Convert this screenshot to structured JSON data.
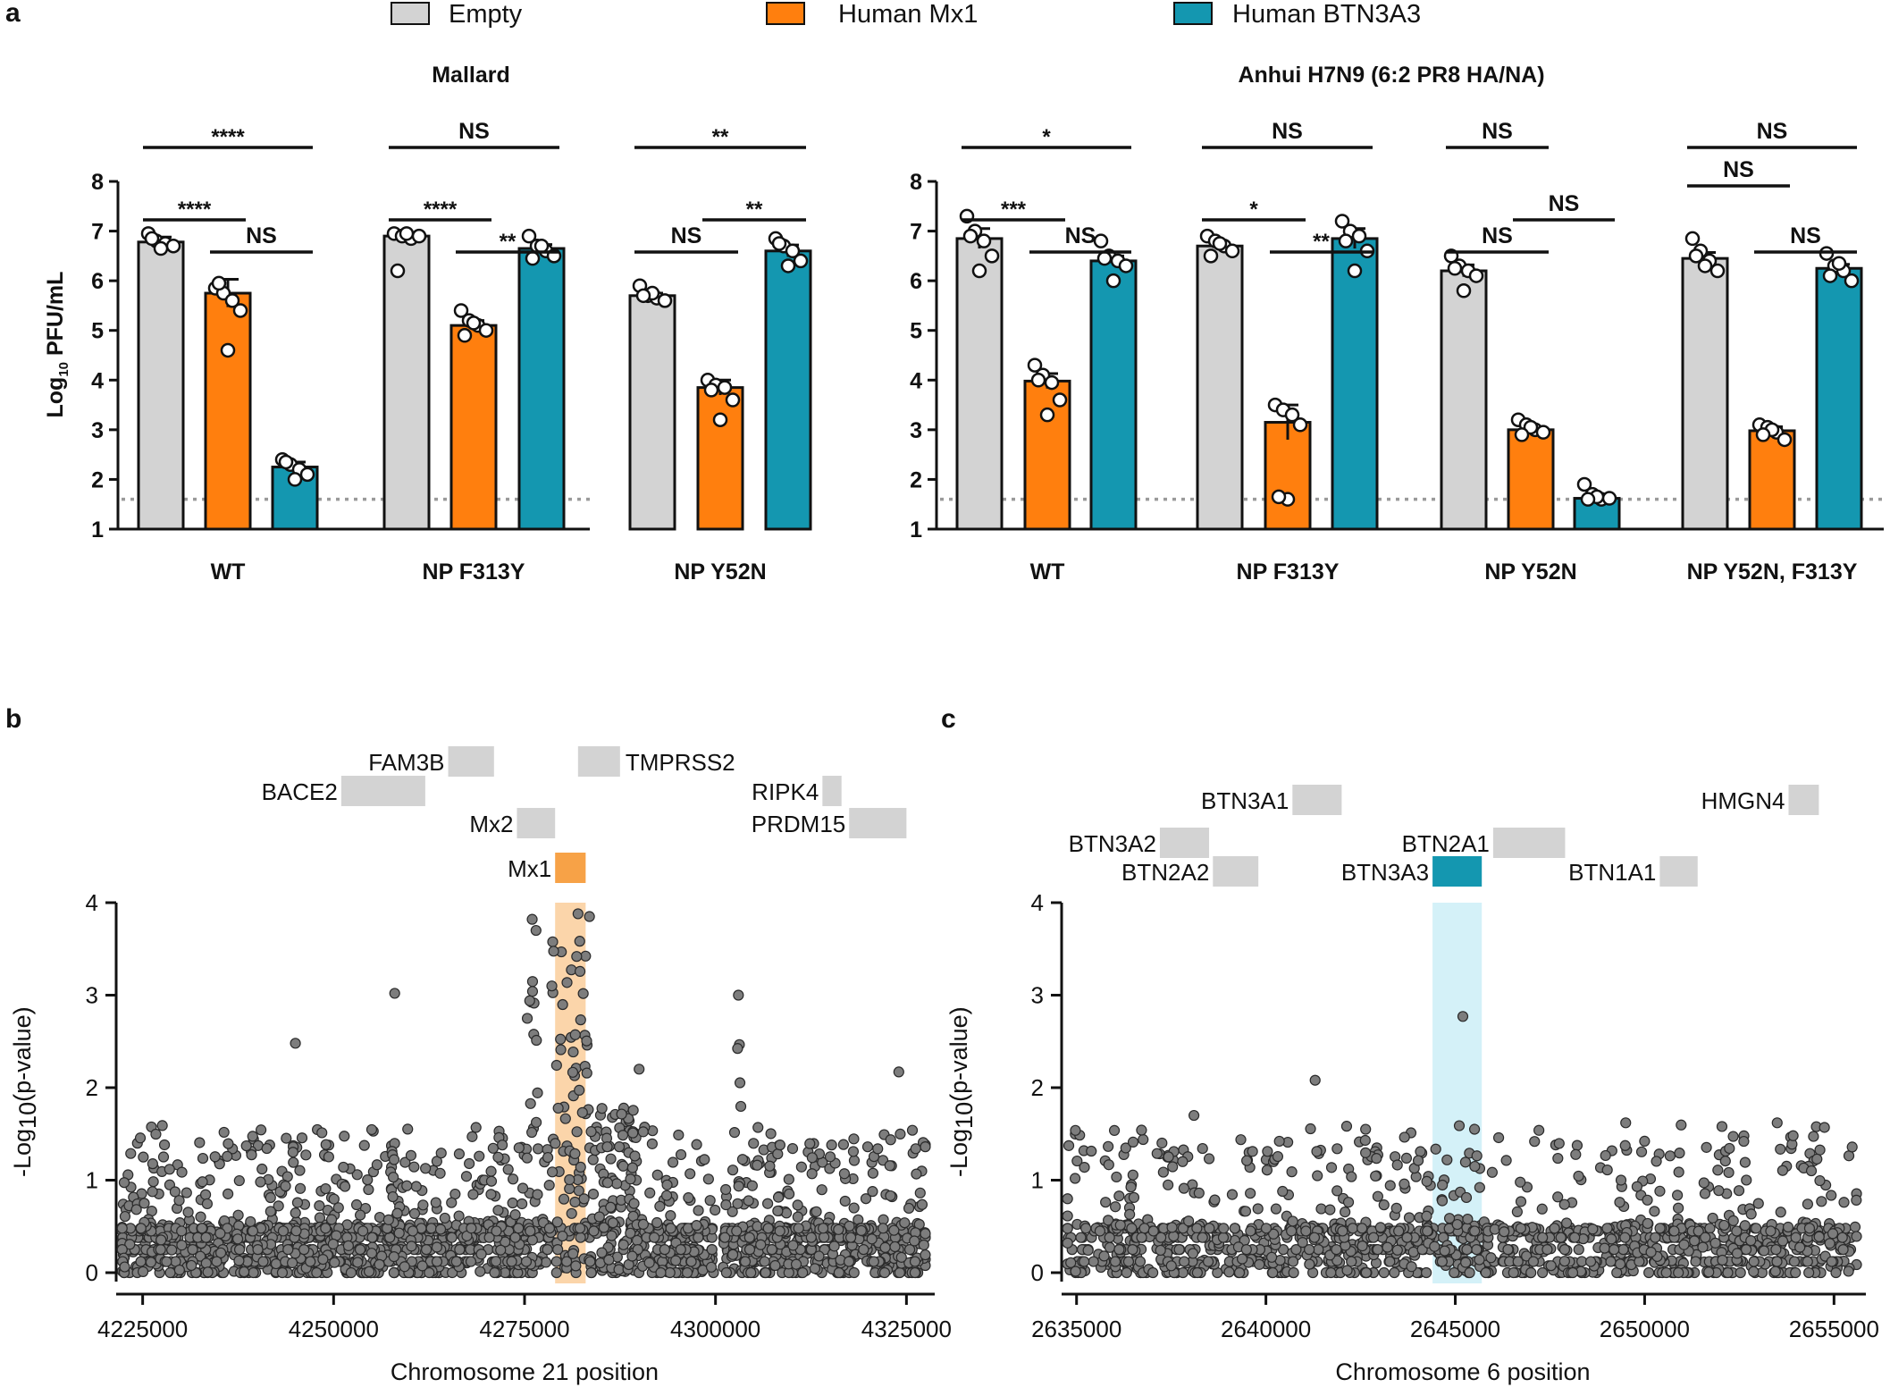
{
  "panel_labels": [
    "a",
    "b",
    "c"
  ],
  "legend": [
    {
      "label": "Empty",
      "color": "#d3d3d3"
    },
    {
      "label": "Human Mx1",
      "color": "#ff7f0e"
    },
    {
      "label": "Human BTN3A3",
      "color": "#1497b0"
    }
  ],
  "chart_data": [
    {
      "type": "bar",
      "title": "Mallard",
      "ylabel_main": "Log",
      "ylabel_sub": "10",
      "ylabel_rest": " PFU/mL",
      "ylim": [
        1,
        8
      ],
      "yticks": [
        "1",
        "2",
        "3",
        "4",
        "5",
        "6",
        "7",
        "8"
      ],
      "detection_limit": 1.6,
      "series_names": [
        "Empty",
        "Human Mx1",
        "Human BTN3A3"
      ],
      "groups": [
        {
          "label": "WT",
          "means": [
            6.78,
            5.75,
            2.25
          ],
          "sem": [
            0.1,
            0.28,
            0.1
          ],
          "points": [
            [
              6.95,
              6.8,
              6.75,
              6.7,
              6.65,
              6.85
            ],
            [
              5.85,
              5.75,
              5.6,
              5.4,
              4.6,
              5.95
            ],
            [
              2.4,
              2.3,
              2.2,
              2.1,
              2.0,
              2.35
            ]
          ],
          "comparisons": [
            {
              "from": 0,
              "to": 2,
              "label": "****",
              "level": 3.7
            },
            {
              "from": 0,
              "to": 1,
              "label": "****",
              "level": 2.1
            },
            {
              "from": 1,
              "to": 2,
              "label": "NS",
              "level": 1.15
            }
          ]
        },
        {
          "label": "NP F313Y",
          "means": [
            6.9,
            5.1,
            6.65
          ],
          "sem": [
            0.05,
            0.1,
            0.08
          ],
          "points": [
            [
              6.95,
              6.9,
              6.85,
              6.9,
              6.95,
              6.2
            ],
            [
              5.4,
              5.2,
              5.1,
              5.0,
              5.15,
              4.9
            ],
            [
              6.9,
              6.7,
              6.6,
              6.5,
              6.7,
              6.45
            ]
          ],
          "comparisons": [
            {
              "from": 0,
              "to": 2,
              "label": "NS",
              "level": 3.7
            },
            {
              "from": 0,
              "to": 1,
              "label": "****",
              "level": 2.1
            },
            {
              "from": 1,
              "to": 2,
              "label": "**",
              "level": 1.15
            }
          ]
        },
        {
          "label": "NP Y52N",
          "means": [
            5.7,
            3.85,
            6.6
          ],
          "sem": [
            0.05,
            0.15,
            0.12
          ],
          "points": [
            [
              5.9,
              5.7,
              5.65,
              5.6,
              5.75,
              5.7
            ],
            [
              4.0,
              3.9,
              3.85,
              3.6,
              3.2,
              3.8
            ],
            [
              6.85,
              6.7,
              6.6,
              6.4,
              6.3,
              6.75
            ]
          ],
          "comparisons": [
            {
              "from": 0,
              "to": 2,
              "label": "**",
              "level": 3.7
            },
            {
              "from": 0,
              "to": 1,
              "label": "NS",
              "level": 1.15
            },
            {
              "from": 1,
              "to": 2,
              "label": "**",
              "level": 2.1
            }
          ]
        }
      ]
    },
    {
      "type": "bar",
      "title": "Anhui H7N9 (6:2 PR8 HA/NA)",
      "ylim": [
        1,
        8
      ],
      "yticks": [
        "1",
        "2",
        "3",
        "4",
        "5",
        "6",
        "7",
        "8"
      ],
      "detection_limit": 1.6,
      "series_names": [
        "Empty",
        "Human Mx1",
        "Human BTN3A3"
      ],
      "groups": [
        {
          "label": "WT",
          "means": [
            6.85,
            3.98,
            6.4
          ],
          "sem": [
            0.2,
            0.15,
            0.1
          ],
          "points": [
            [
              7.3,
              7.0,
              6.8,
              6.5,
              6.2,
              6.9
            ],
            [
              4.3,
              4.1,
              3.95,
              3.6,
              3.3,
              4.0
            ],
            [
              6.8,
              6.5,
              6.4,
              6.3,
              6.0,
              6.45
            ]
          ],
          "comparisons": [
            {
              "from": 0,
              "to": 2,
              "label": "*",
              "level": 3.7
            },
            {
              "from": 0,
              "to": 1,
              "label": "***",
              "level": 2.1
            },
            {
              "from": 1,
              "to": 2,
              "label": "NS",
              "level": 1.15
            }
          ]
        },
        {
          "label": "NP F313Y",
          "means": [
            6.7,
            3.15,
            6.85
          ],
          "sem": [
            0.06,
            0.35,
            0.2
          ],
          "points": [
            [
              6.9,
              6.8,
              6.7,
              6.6,
              6.75,
              6.5
            ],
            [
              3.5,
              3.4,
              3.3,
              3.1,
              1.6,
              1.65
            ],
            [
              7.2,
              7.0,
              6.9,
              6.6,
              6.2,
              6.8
            ]
          ],
          "comparisons": [
            {
              "from": 0,
              "to": 2,
              "label": "NS",
              "level": 3.7
            },
            {
              "from": 0,
              "to": 1,
              "label": "*",
              "level": 2.1
            },
            {
              "from": 1,
              "to": 2,
              "label": "**",
              "level": 1.15
            }
          ]
        },
        {
          "label": "NP Y52N",
          "means": [
            6.2,
            3.0,
            1.62
          ],
          "sem": [
            0.12,
            0.06,
            0.03
          ],
          "points": [
            [
              6.5,
              6.3,
              6.2,
              6.1,
              5.8,
              6.25
            ],
            [
              3.2,
              3.1,
              3.0,
              2.95,
              3.05,
              2.9
            ],
            [
              1.9,
              1.7,
              1.6,
              1.62,
              1.65,
              1.6
            ]
          ],
          "comparisons": [
            {
              "from": 0,
              "to": 1,
              "label": "NS",
              "level": 3.7
            },
            {
              "from": 0,
              "to": 1,
              "label": "NS",
              "level": 1.15
            },
            {
              "from": 1,
              "to": 2,
              "label": "NS",
              "level": 2.1
            }
          ]
        },
        {
          "label": "NP Y52N, F313Y",
          "means": [
            6.45,
            2.98,
            6.25
          ],
          "sem": [
            0.12,
            0.08,
            0.08
          ],
          "points": [
            [
              6.85,
              6.6,
              6.4,
              6.2,
              6.3,
              6.5
            ],
            [
              3.1,
              3.05,
              2.95,
              2.8,
              3.0,
              2.9
            ],
            [
              6.55,
              6.3,
              6.2,
              6.0,
              6.35,
              6.1
            ]
          ],
          "comparisons": [
            {
              "from": 0,
              "to": 2,
              "label": "NS",
              "level": 3.7
            },
            {
              "from": 0,
              "to": 1,
              "label": "NS",
              "level": 2.8
            },
            {
              "from": 1,
              "to": 2,
              "label": "NS",
              "level": 1.15
            }
          ]
        }
      ]
    },
    {
      "type": "scatter",
      "panel": "b",
      "xlabel": "Chromosome 21 position",
      "ylabel_main": "-Log",
      "ylabel_sub": "10",
      "ylabel_rest": "(p-value)",
      "xlim": [
        4222000,
        4328000
      ],
      "ylim": [
        0,
        4
      ],
      "xticks": [
        "4225000",
        "4250000",
        "4275000",
        "4300000",
        "4325000"
      ],
      "yticks": [
        "0",
        "1",
        "2",
        "3",
        "4"
      ],
      "highlight": {
        "gene": "Mx1",
        "start": 4279000,
        "end": 4283000,
        "color": "#fbd5aa",
        "bar_color": "#f7a247"
      },
      "genes": [
        {
          "name": "FAM3B",
          "start": 4265000,
          "end": 4271000,
          "row": 0,
          "label_side": "left"
        },
        {
          "name": "TMPRSS2",
          "start": 4282000,
          "end": 4287500,
          "row": 0,
          "label_side": "right"
        },
        {
          "name": "BACE2",
          "start": 4251000,
          "end": 4262000,
          "row": 1,
          "label_side": "left"
        },
        {
          "name": "RIPK4",
          "start": 4314000,
          "end": 4316500,
          "row": 1,
          "label_side": "left"
        },
        {
          "name": "Mx2",
          "start": 4274000,
          "end": 4279000,
          "row": 2,
          "label_side": "left"
        },
        {
          "name": "PRDM15",
          "start": 4317500,
          "end": 4325000,
          "row": 2,
          "label_side": "left"
        },
        {
          "name": "Mx1",
          "start": 4279000,
          "end": 4283000,
          "row": 3,
          "label_side": "left",
          "highlighted": true
        }
      ],
      "gaps": [
        [
          4300000,
          4301000
        ]
      ],
      "peaks": [
        {
          "x": 4281000,
          "width": 5000,
          "height": 3.6
        },
        {
          "x": 4276000,
          "width": 1500,
          "height": 3.5
        },
        {
          "x": 4287000,
          "width": 6000,
          "height": 1.8
        },
        {
          "x": 4258000,
          "width": 1500,
          "height": 1.4
        },
        {
          "x": 4303000,
          "width": 1200,
          "height": 2.7
        }
      ],
      "labeled_outliers": [
        [
          4276000,
          3.82
        ],
        [
          4276500,
          3.7
        ],
        [
          4282000,
          3.88
        ],
        [
          4283500,
          3.85
        ],
        [
          4258000,
          3.02
        ],
        [
          4303000,
          3.0
        ],
        [
          4245000,
          2.48
        ],
        [
          4324000,
          2.17
        ],
        [
          4290000,
          2.2
        ]
      ],
      "n_points": 2200,
      "seed": 21
    },
    {
      "type": "scatter",
      "panel": "c",
      "xlabel": "Chromosome 6 position",
      "ylabel_main": "-Log",
      "ylabel_sub": "10",
      "ylabel_rest": "(p-value)",
      "xlim": [
        2634700,
        2655700
      ],
      "ylim": [
        0,
        4
      ],
      "xticks": [
        "2635000",
        "2640000",
        "2645000",
        "2650000",
        "2655000"
      ],
      "yticks": [
        "0",
        "1",
        "2",
        "3",
        "4"
      ],
      "highlight": {
        "gene": "BTN3A3",
        "start": 2644400,
        "end": 2645700,
        "color": "#d4f1f8",
        "bar_color": "#1497b0"
      },
      "genes": [
        {
          "name": "BTN3A1",
          "start": 2640700,
          "end": 2642000,
          "row": 0,
          "label_side": "left"
        },
        {
          "name": "HMGN4",
          "start": 2653800,
          "end": 2654600,
          "row": 0,
          "label_side": "left"
        },
        {
          "name": "BTN3A2",
          "start": 2637200,
          "end": 2638500,
          "row": 1,
          "label_side": "left"
        },
        {
          "name": "BTN2A1",
          "start": 2646000,
          "end": 2647900,
          "row": 1,
          "label_side": "left"
        },
        {
          "name": "BTN2A2",
          "start": 2638600,
          "end": 2639800,
          "row": 2,
          "label_side": "left"
        },
        {
          "name": "BTN3A3",
          "start": 2644400,
          "end": 2645700,
          "row": 2,
          "label_side": "left",
          "highlighted": true
        },
        {
          "name": "BTN1A1",
          "start": 2650400,
          "end": 2651400,
          "row": 2,
          "label_side": "left"
        }
      ],
      "labeled_outliers": [
        [
          2645200,
          2.77
        ],
        [
          2641300,
          2.08
        ],
        [
          2638100,
          1.7
        ],
        [
          2649500,
          1.62
        ],
        [
          2653500,
          1.62
        ]
      ],
      "n_points": 1400,
      "seed": 6
    }
  ]
}
